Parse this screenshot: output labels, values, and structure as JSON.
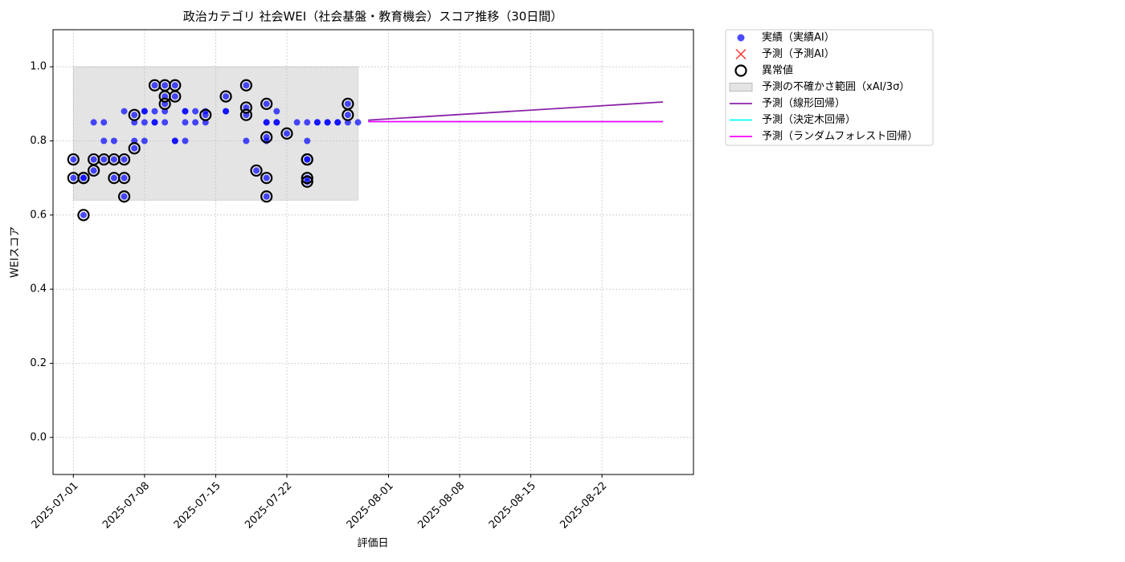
{
  "chart_data": {
    "type": "scatter",
    "title": "政治カテゴリ 社会WEI（社会基盤・教育機会）スコア推移（30日間）",
    "xlabel": "評価日",
    "ylabel": "WEIスコア",
    "xlim": [
      "2025-06-29",
      "2025-08-31"
    ],
    "xticks": [
      "2025-07-01",
      "2025-07-08",
      "2025-07-15",
      "2025-07-22",
      "2025-08-01",
      "2025-08-08",
      "2025-08-15",
      "2025-08-22"
    ],
    "ylim": [
      -0.1,
      1.1
    ],
    "yticks": [
      {
        "value": 0,
        "label": "0.0"
      },
      {
        "value": 0.2,
        "label": "0.2"
      },
      {
        "value": 0.4,
        "label": "0.4"
      },
      {
        "value": 0.6,
        "label": "0.6"
      },
      {
        "value": 0.8,
        "label": "0.8"
      },
      {
        "value": 1,
        "label": "1.0"
      }
    ],
    "grid": true,
    "legend": "outside upper right",
    "series": [
      {
        "name": "実績（実績AI）",
        "type": "scatter",
        "marker": "dot",
        "color": "#0000ff",
        "x": [
          "2025-07-01",
          "2025-07-01",
          "2025-07-02",
          "2025-07-02",
          "2025-07-02",
          "2025-07-03",
          "2025-07-03",
          "2025-07-03",
          "2025-07-04",
          "2025-07-04",
          "2025-07-04",
          "2025-07-05",
          "2025-07-05",
          "2025-07-05",
          "2025-07-06",
          "2025-07-06",
          "2025-07-06",
          "2025-07-06",
          "2025-07-07",
          "2025-07-07",
          "2025-07-07",
          "2025-07-07",
          "2025-07-08",
          "2025-07-08",
          "2025-07-08",
          "2025-07-08",
          "2025-07-09",
          "2025-07-09",
          "2025-07-09",
          "2025-07-09",
          "2025-07-10",
          "2025-07-10",
          "2025-07-10",
          "2025-07-10",
          "2025-07-10",
          "2025-07-11",
          "2025-07-11",
          "2025-07-11",
          "2025-07-11",
          "2025-07-12",
          "2025-07-12",
          "2025-07-12",
          "2025-07-12",
          "2025-07-13",
          "2025-07-13",
          "2025-07-14",
          "2025-07-14",
          "2025-07-14",
          "2025-07-16",
          "2025-07-16",
          "2025-07-16",
          "2025-07-18",
          "2025-07-18",
          "2025-07-18",
          "2025-07-18",
          "2025-07-19",
          "2025-07-20",
          "2025-07-20",
          "2025-07-20",
          "2025-07-20",
          "2025-07-20",
          "2025-07-20",
          "2025-07-20",
          "2025-07-21",
          "2025-07-21",
          "2025-07-21",
          "2025-07-22",
          "2025-07-23",
          "2025-07-24",
          "2025-07-24",
          "2025-07-24",
          "2025-07-24",
          "2025-07-24",
          "2025-07-24",
          "2025-07-25",
          "2025-07-25",
          "2025-07-26",
          "2025-07-26",
          "2025-07-27",
          "2025-07-27",
          "2025-07-28",
          "2025-07-28",
          "2025-07-28",
          "2025-07-29"
        ],
        "values": [
          0.75,
          0.7,
          0.7,
          0.7,
          0.6,
          0.85,
          0.75,
          0.72,
          0.8,
          0.85,
          0.75,
          0.8,
          0.75,
          0.7,
          0.7,
          0.75,
          0.65,
          0.88,
          0.78,
          0.85,
          0.87,
          0.8,
          0.85,
          0.88,
          0.88,
          0.8,
          0.85,
          0.95,
          0.88,
          0.85,
          0.85,
          0.9,
          0.92,
          0.95,
          0.88,
          0.8,
          0.8,
          0.95,
          0.92,
          0.8,
          0.88,
          0.85,
          0.88,
          0.88,
          0.85,
          0.85,
          0.87,
          0.88,
          0.92,
          0.88,
          0.88,
          0.95,
          0.89,
          0.87,
          0.8,
          0.72,
          0.7,
          0.65,
          0.9,
          0.81,
          0.85,
          0.85,
          0.8,
          0.85,
          0.88,
          0.85,
          0.82,
          0.85,
          0.75,
          0.85,
          0.8,
          0.75,
          0.7,
          0.69,
          0.85,
          0.85,
          0.85,
          0.85,
          0.85,
          0.85,
          0.9,
          0.87,
          0.85,
          0.85
        ]
      },
      {
        "name": "予測（予測AI）",
        "type": "scatter",
        "marker": "x",
        "color": "#ff0000",
        "x": [],
        "values": []
      },
      {
        "name": "異常値",
        "type": "scatter",
        "marker": "ring",
        "color": "#000000",
        "x": [
          "2025-07-01",
          "2025-07-01",
          "2025-07-02",
          "2025-07-02",
          "2025-07-02",
          "2025-07-03",
          "2025-07-03",
          "2025-07-04",
          "2025-07-05",
          "2025-07-05",
          "2025-07-06",
          "2025-07-06",
          "2025-07-06",
          "2025-07-07",
          "2025-07-07",
          "2025-07-09",
          "2025-07-10",
          "2025-07-10",
          "2025-07-10",
          "2025-07-11",
          "2025-07-11",
          "2025-07-14",
          "2025-07-16",
          "2025-07-18",
          "2025-07-18",
          "2025-07-18",
          "2025-07-19",
          "2025-07-20",
          "2025-07-20",
          "2025-07-20",
          "2025-07-20",
          "2025-07-22",
          "2025-07-24",
          "2025-07-24",
          "2025-07-24",
          "2025-07-24",
          "2025-07-28",
          "2025-07-28"
        ],
        "values": [
          0.75,
          0.7,
          0.7,
          0.7,
          0.6,
          0.75,
          0.72,
          0.75,
          0.75,
          0.7,
          0.7,
          0.75,
          0.65,
          0.78,
          0.87,
          0.95,
          0.9,
          0.92,
          0.95,
          0.95,
          0.92,
          0.87,
          0.92,
          0.95,
          0.89,
          0.87,
          0.72,
          0.7,
          0.65,
          0.9,
          0.81,
          0.82,
          0.75,
          0.75,
          0.7,
          0.69,
          0.9,
          0.87
        ]
      },
      {
        "name": "予測の不確かさ範囲（xAI/3σ）",
        "type": "band",
        "color": "#bbbbbb",
        "x": [
          "2025-07-01",
          "2025-07-29"
        ],
        "lower": [
          0.64,
          0.64
        ],
        "upper": [
          1.0,
          1.0
        ]
      },
      {
        "name": "予測（線形回帰）",
        "type": "line",
        "color": "#8b22a8",
        "x": [
          "2025-07-30",
          "2025-08-28"
        ],
        "values": [
          0.856,
          0.905
        ]
      },
      {
        "name": "予測（決定木回帰）",
        "type": "line",
        "color": "#00ffff",
        "x": [
          "2025-07-30",
          "2025-08-28"
        ],
        "values": [
          0.852,
          0.852
        ]
      },
      {
        "name": "予測（ランダムフォレスト回帰）",
        "type": "line",
        "color": "#ff00ff",
        "x": [
          "2025-07-30",
          "2025-08-28"
        ],
        "values": [
          0.852,
          0.852
        ]
      }
    ]
  }
}
